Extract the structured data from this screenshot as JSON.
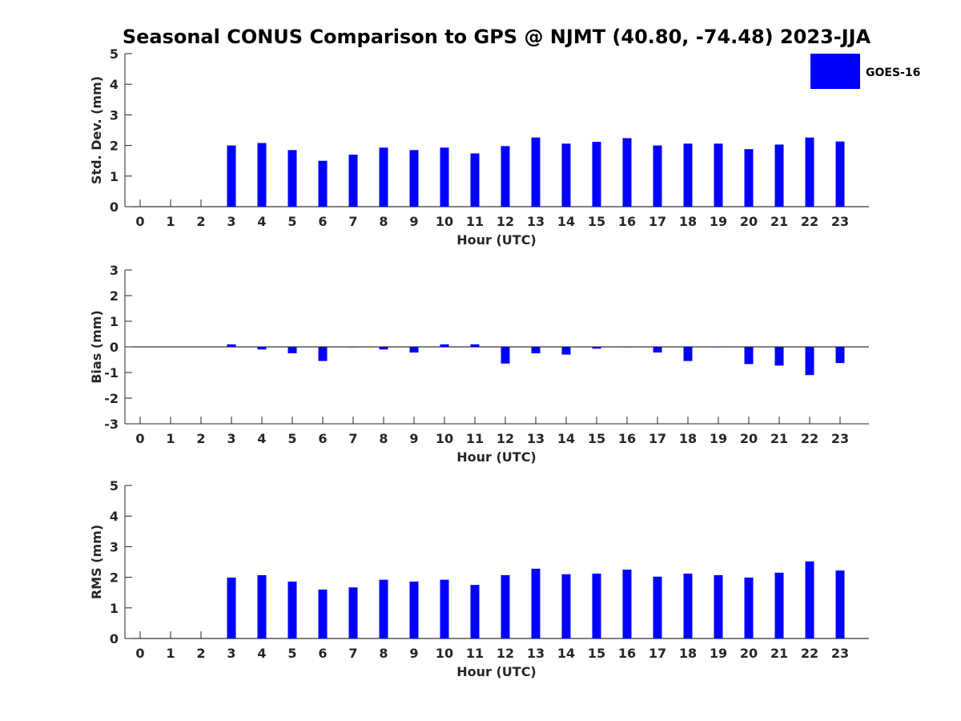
{
  "title": "Seasonal CONUS Comparison to GPS @ NJMT (40.80, -74.48) 2023-JJA",
  "legend": {
    "entries": [
      "GOES-16"
    ],
    "color": "#0000ff",
    "placement": "top-right"
  },
  "chart_data": [
    {
      "type": "bar",
      "xlabel": "Hour (UTC)",
      "ylabel": "Std. Dev. (mm)",
      "ylim": [
        0,
        5
      ],
      "yticks": [
        0,
        1,
        2,
        3,
        4,
        5
      ],
      "categories": [
        0,
        1,
        2,
        3,
        4,
        5,
        6,
        7,
        8,
        9,
        10,
        11,
        12,
        13,
        14,
        15,
        16,
        17,
        18,
        19,
        20,
        21,
        22,
        23
      ],
      "series": [
        {
          "name": "GOES-16",
          "color": "#0000ff",
          "values": [
            null,
            null,
            null,
            2.0,
            2.08,
            1.85,
            1.5,
            1.7,
            1.93,
            1.85,
            1.93,
            1.74,
            1.98,
            2.26,
            2.06,
            2.12,
            2.24,
            2.0,
            2.06,
            2.06,
            1.88,
            2.03,
            2.26,
            2.13
          ]
        }
      ]
    },
    {
      "type": "bar",
      "xlabel": "Hour (UTC)",
      "ylabel": "Bias (mm)",
      "ylim": [
        -3,
        3
      ],
      "yticks": [
        -3,
        -2,
        -1,
        0,
        1,
        2,
        3
      ],
      "categories": [
        0,
        1,
        2,
        3,
        4,
        5,
        6,
        7,
        8,
        9,
        10,
        11,
        12,
        13,
        14,
        15,
        16,
        17,
        18,
        19,
        20,
        21,
        22,
        23
      ],
      "series": [
        {
          "name": "GOES-16",
          "color": "#0000ff",
          "values": [
            null,
            null,
            null,
            0.1,
            -0.1,
            -0.25,
            -0.55,
            -0.02,
            -0.1,
            -0.22,
            0.1,
            0.1,
            -0.65,
            -0.25,
            -0.3,
            -0.07,
            -0.02,
            -0.22,
            -0.55,
            0.0,
            -0.67,
            -0.73,
            -1.1,
            -0.63
          ]
        }
      ]
    },
    {
      "type": "bar",
      "xlabel": "Hour (UTC)",
      "ylabel": "RMS (mm)",
      "ylim": [
        0,
        5
      ],
      "yticks": [
        0,
        1,
        2,
        3,
        4,
        5
      ],
      "categories": [
        0,
        1,
        2,
        3,
        4,
        5,
        6,
        7,
        8,
        9,
        10,
        11,
        12,
        13,
        14,
        15,
        16,
        17,
        18,
        19,
        20,
        21,
        22,
        23
      ],
      "series": [
        {
          "name": "GOES-16",
          "color": "#0000ff",
          "values": [
            null,
            null,
            null,
            1.99,
            2.07,
            1.86,
            1.6,
            1.67,
            1.92,
            1.86,
            1.92,
            1.75,
            2.07,
            2.28,
            2.1,
            2.12,
            2.25,
            2.02,
            2.12,
            2.07,
            1.99,
            2.15,
            2.52,
            2.22
          ]
        }
      ]
    }
  ]
}
